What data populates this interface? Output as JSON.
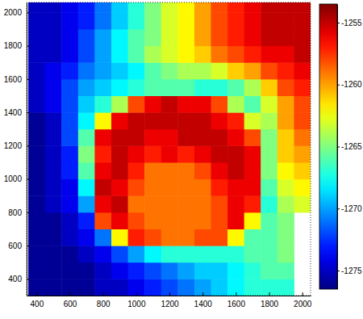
{
  "chart_data": {
    "type": "heatmap",
    "x": [
      400,
      500,
      600,
      700,
      800,
      900,
      1000,
      1100,
      1200,
      1300,
      1400,
      1500,
      1600,
      1700,
      1800,
      1900,
      2000
    ],
    "y": [
      350,
      450,
      550,
      650,
      750,
      850,
      950,
      1050,
      1150,
      1250,
      1350,
      1450,
      1550,
      1650,
      1750,
      1850,
      1950,
      2050
    ],
    "z": [
      [
        -1276,
        -1276,
        -1276,
        -1276,
        -1275,
        -1275,
        -1274,
        -1273,
        -1272,
        -1271,
        -1270,
        -1269,
        -1268,
        -1267,
        -1267,
        -1267,
        null
      ],
      [
        -1276,
        -1276,
        -1276,
        -1276,
        -1275,
        -1274,
        -1273,
        -1272,
        -1271,
        -1270,
        -1269,
        -1269,
        -1268,
        -1267,
        -1266,
        -1266,
        null
      ],
      [
        -1276,
        -1276,
        -1276,
        -1275,
        -1274,
        -1272,
        -1270,
        -1268,
        -1267,
        -1267,
        -1267,
        -1267,
        -1267,
        -1266,
        -1266,
        -1265,
        null
      ],
      [
        -1276,
        -1276,
        -1275,
        -1274,
        -1271,
        -1262,
        -1257,
        -1258,
        -1259,
        -1259,
        -1258,
        -1258,
        -1262,
        -1266,
        -1266,
        -1265,
        null
      ],
      [
        -1276,
        -1276,
        -1275,
        -1273,
        -1258,
        -1256,
        -1258,
        -1259,
        -1259,
        -1259,
        -1259,
        -1258,
        -1256,
        -1262,
        -1266,
        -1265,
        null
      ],
      [
        -1276,
        -1275,
        -1274,
        -1270,
        -1256,
        -1255,
        -1259,
        -1259,
        -1259,
        -1259,
        -1259,
        -1258,
        -1256,
        -1257,
        -1267,
        -1264,
        -1263
      ],
      [
        -1276,
        -1275,
        -1274,
        -1268,
        -1255,
        -1256,
        -1258,
        -1259,
        -1259,
        -1259,
        -1259,
        -1257,
        -1256,
        -1256,
        -1266,
        -1263,
        -1262
      ],
      [
        -1276,
        -1275,
        -1273,
        -1266,
        -1256,
        -1255,
        -1257,
        -1259,
        -1259,
        -1259,
        -1258,
        -1256,
        -1255,
        -1256,
        -1265,
        -1262,
        -1261
      ],
      [
        -1276,
        -1275,
        -1273,
        -1265,
        -1257,
        -1255,
        -1256,
        -1257,
        -1256,
        -1257,
        -1256,
        -1255,
        -1255,
        -1256,
        -1265,
        -1261,
        -1260
      ],
      [
        -1276,
        -1275,
        -1272,
        -1266,
        -1256,
        -1255,
        -1255,
        -1256,
        -1256,
        -1255,
        -1255,
        -1255,
        -1256,
        -1258,
        -1265,
        -1261,
        -1259
      ],
      [
        -1276,
        -1275,
        -1272,
        -1268,
        -1262,
        -1256,
        -1255,
        -1255,
        -1255,
        -1255,
        -1255,
        -1256,
        -1257,
        -1263,
        -1264,
        -1260,
        -1258
      ],
      [
        -1275,
        -1274,
        -1272,
        -1269,
        -1267,
        -1264,
        -1258,
        -1256,
        -1255,
        -1256,
        -1256,
        -1258,
        -1264,
        -1266,
        -1263,
        -1260,
        -1258
      ],
      [
        -1275,
        -1274,
        -1272,
        -1270,
        -1269,
        -1268,
        -1267,
        -1266,
        -1266,
        -1266,
        -1267,
        -1267,
        -1266,
        -1264,
        -1261,
        -1258,
        -1257
      ],
      [
        -1275,
        -1274,
        -1273,
        -1271,
        -1270,
        -1269,
        -1268,
        -1266,
        -1265,
        -1264,
        -1264,
        -1263,
        -1261,
        -1260,
        -1258,
        -1257,
        -1256
      ],
      [
        -1275,
        -1275,
        -1274,
        -1272,
        -1270,
        -1268,
        -1266,
        -1264,
        -1263,
        -1262,
        -1261,
        -1259,
        -1258,
        -1257,
        -1256,
        -1256,
        -1255
      ],
      [
        -1275,
        -1275,
        -1274,
        -1272,
        -1270,
        -1268,
        -1266,
        -1265,
        -1263,
        -1262,
        -1260,
        -1258,
        -1257,
        -1256,
        -1255,
        -1255,
        -1255
      ],
      [
        -1275,
        -1275,
        -1274,
        -1273,
        -1271,
        -1269,
        -1267,
        -1265,
        -1263,
        -1262,
        -1260,
        -1258,
        -1257,
        -1256,
        -1255,
        -1255,
        -1255
      ],
      [
        -1275,
        -1275,
        -1274,
        -1273,
        -1271,
        -1269,
        -1267,
        -1265,
        -1263,
        -1262,
        -1260,
        -1258,
        -1257,
        -1256,
        -1255,
        -1255,
        -1255
      ]
    ],
    "xlim": [
      340,
      2050
    ],
    "ylim": [
      300,
      2060
    ],
    "xticks": [
      400,
      600,
      800,
      1000,
      1200,
      1400,
      1600,
      1800,
      2000
    ],
    "yticks": [
      400,
      600,
      800,
      1000,
      1200,
      1400,
      1600,
      1800,
      2000
    ],
    "colorbar_range": [
      -1276.5,
      -1253.5
    ],
    "colorbar_ticks": [
      -1275,
      -1270,
      -1265,
      -1260,
      -1255
    ]
  }
}
